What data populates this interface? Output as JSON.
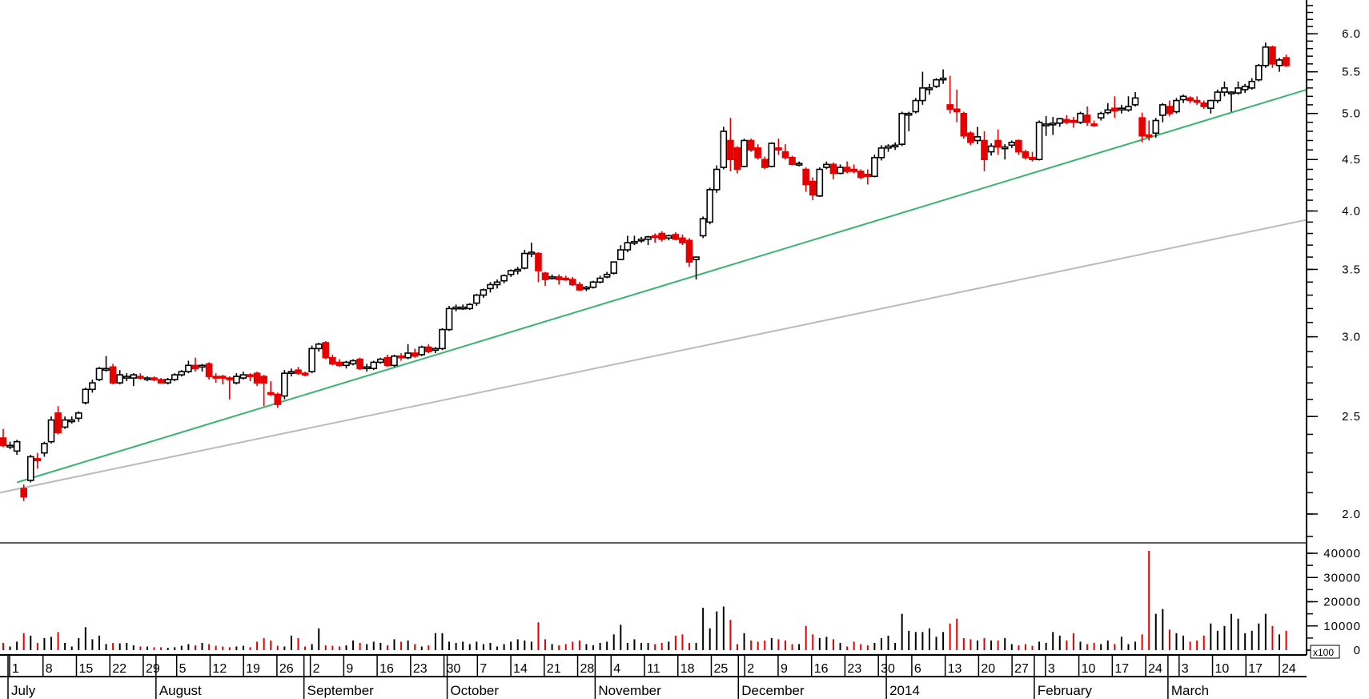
{
  "chart_data": {
    "type": "candlestick",
    "title": "",
    "price_axis": {
      "scale": "log",
      "range": [
        1.88,
        6.45
      ],
      "labels": [
        "2.0",
        "2.5",
        "3.0",
        "3.5",
        "4.0",
        "4.5",
        "5.0",
        "5.5",
        "6.0"
      ],
      "major_values": [
        2.0,
        2.5,
        3.0,
        3.5,
        4.0,
        4.5,
        5.0,
        5.5,
        6.0
      ],
      "minor_step": 0.1
    },
    "volume_axis": {
      "range": [
        0,
        44000
      ],
      "labels": [
        "0",
        "10000",
        "20000",
        "30000",
        "40000"
      ],
      "major_values": [
        0,
        10000,
        20000,
        30000,
        40000
      ],
      "minor_step": 5000,
      "multiplier_label": "x100"
    },
    "colors": {
      "up": "#000000",
      "down": "#e60000",
      "trendline_support": "#3cb371",
      "trendline_long": "#bbbbbb"
    },
    "trendlines": [
      {
        "name": "support",
        "from": [
          2,
          2.15
        ],
        "to": [
          190,
          5.28
        ]
      },
      {
        "name": "long-term",
        "from": [
          -0.5,
          2.1
        ],
        "to": [
          190,
          3.92
        ]
      }
    ],
    "months": [
      {
        "name": "July",
        "weeks": [
          "1",
          "8",
          "15",
          "22",
          "29"
        ]
      },
      {
        "name": "August",
        "weeks": [
          "5",
          "12",
          "19",
          "26"
        ]
      },
      {
        "name": "September",
        "weeks": [
          "2",
          "9",
          "16",
          "23",
          "30"
        ]
      },
      {
        "name": "October",
        "weeks": [
          "7",
          "14",
          "21",
          "28"
        ]
      },
      {
        "name": "November",
        "weeks": [
          "4",
          "11",
          "18",
          "25"
        ]
      },
      {
        "name": "December",
        "weeks": [
          "2",
          "9",
          "16",
          "23",
          "30"
        ]
      },
      {
        "name": "2014",
        "weeks": [
          "6",
          "13",
          "20",
          "27"
        ]
      },
      {
        "name": "February",
        "weeks": [
          "3",
          "10",
          "17",
          "24"
        ]
      },
      {
        "name": "March",
        "weeks": [
          "3",
          "10",
          "17",
          "24"
        ]
      }
    ],
    "candle_fields": [
      "open",
      "high",
      "low",
      "close",
      "volume"
    ],
    "candles": [
      [
        2.38,
        2.43,
        2.33,
        2.34,
        3000
      ],
      [
        2.34,
        2.36,
        2.32,
        2.34,
        1500
      ],
      [
        2.31,
        2.37,
        2.29,
        2.36,
        3500
      ],
      [
        2.12,
        2.14,
        2.06,
        2.08,
        7000
      ],
      [
        2.16,
        2.29,
        2.15,
        2.28,
        6000
      ],
      [
        2.27,
        2.3,
        2.22,
        2.26,
        3000
      ],
      [
        2.3,
        2.36,
        2.28,
        2.35,
        5000
      ],
      [
        2.36,
        2.5,
        2.35,
        2.48,
        5500
      ],
      [
        2.52,
        2.56,
        2.4,
        2.41,
        7500
      ],
      [
        2.44,
        2.5,
        2.43,
        2.48,
        3000
      ],
      [
        2.48,
        2.5,
        2.46,
        2.48,
        1500
      ],
      [
        2.49,
        2.53,
        2.47,
        2.52,
        5000
      ],
      [
        2.58,
        2.67,
        2.57,
        2.66,
        9500
      ],
      [
        2.66,
        2.72,
        2.64,
        2.7,
        4500
      ],
      [
        2.72,
        2.8,
        2.71,
        2.79,
        6000
      ],
      [
        2.78,
        2.87,
        2.77,
        2.79,
        2500
      ],
      [
        2.8,
        2.82,
        2.69,
        2.7,
        3000
      ],
      [
        2.7,
        2.78,
        2.69,
        2.75,
        2800
      ],
      [
        2.74,
        2.76,
        2.71,
        2.74,
        3000
      ],
      [
        2.73,
        2.76,
        2.68,
        2.75,
        2000
      ],
      [
        2.74,
        2.76,
        2.72,
        2.73,
        1500
      ],
      [
        2.73,
        2.74,
        2.71,
        2.73,
        1500
      ],
      [
        2.73,
        2.74,
        2.71,
        2.72,
        1200
      ],
      [
        2.72,
        2.73,
        2.7,
        2.7,
        1200
      ],
      [
        2.7,
        2.73,
        2.69,
        2.72,
        1000
      ],
      [
        2.72,
        2.76,
        2.71,
        2.75,
        1200
      ],
      [
        2.75,
        2.78,
        2.74,
        2.77,
        1800
      ],
      [
        2.77,
        2.84,
        2.76,
        2.81,
        2500
      ],
      [
        2.81,
        2.86,
        2.77,
        2.79,
        2000
      ],
      [
        2.8,
        2.82,
        2.77,
        2.81,
        3000
      ],
      [
        2.82,
        2.83,
        2.72,
        2.74,
        2500
      ],
      [
        2.74,
        2.76,
        2.7,
        2.73,
        1800
      ],
      [
        2.74,
        2.75,
        2.69,
        2.73,
        1500
      ],
      [
        2.73,
        2.74,
        2.6,
        2.72,
        1200
      ],
      [
        2.7,
        2.76,
        2.69,
        2.74,
        1500
      ],
      [
        2.73,
        2.77,
        2.72,
        2.75,
        1800
      ],
      [
        2.75,
        2.76,
        2.71,
        2.74,
        1200
      ],
      [
        2.76,
        2.77,
        2.68,
        2.7,
        3500
      ],
      [
        2.74,
        2.75,
        2.56,
        2.7,
        5000
      ],
      [
        2.64,
        2.71,
        2.62,
        2.63,
        4000
      ],
      [
        2.63,
        2.64,
        2.55,
        2.57,
        1800
      ],
      [
        2.62,
        2.78,
        2.6,
        2.76,
        1500
      ],
      [
        2.76,
        2.79,
        2.74,
        2.77,
        6000
      ],
      [
        2.78,
        2.8,
        2.75,
        2.76,
        5000
      ],
      [
        2.76,
        2.77,
        2.74,
        2.75,
        1500
      ],
      [
        2.77,
        2.94,
        2.76,
        2.92,
        2500
      ],
      [
        2.92,
        2.96,
        2.9,
        2.95,
        9000
      ],
      [
        2.96,
        2.97,
        2.85,
        2.86,
        2000
      ],
      [
        2.86,
        2.88,
        2.81,
        2.82,
        1800
      ],
      [
        2.83,
        2.85,
        2.8,
        2.81,
        1500
      ],
      [
        2.81,
        2.84,
        2.79,
        2.83,
        2000
      ],
      [
        2.82,
        2.85,
        2.81,
        2.84,
        4000
      ],
      [
        2.85,
        2.86,
        2.78,
        2.79,
        3000
      ],
      [
        2.79,
        2.82,
        2.77,
        2.8,
        2500
      ],
      [
        2.79,
        2.84,
        2.78,
        2.83,
        3500
      ],
      [
        2.83,
        2.86,
        2.82,
        2.85,
        3000
      ],
      [
        2.86,
        2.88,
        2.8,
        2.81,
        2000
      ],
      [
        2.81,
        2.88,
        2.8,
        2.87,
        4500
      ],
      [
        2.87,
        2.89,
        2.84,
        2.86,
        3500
      ],
      [
        2.86,
        2.95,
        2.85,
        2.89,
        4000
      ],
      [
        2.89,
        2.92,
        2.86,
        2.87,
        2500
      ],
      [
        2.88,
        2.94,
        2.87,
        2.93,
        1500
      ],
      [
        2.93,
        2.95,
        2.89,
        2.9,
        2000
      ],
      [
        2.91,
        2.93,
        2.89,
        2.92,
        7000
      ],
      [
        2.92,
        3.06,
        2.91,
        3.05,
        7000
      ],
      [
        3.05,
        3.22,
        3.04,
        3.2,
        3500
      ],
      [
        3.2,
        3.23,
        3.18,
        3.21,
        3000
      ],
      [
        3.21,
        3.23,
        3.19,
        3.21,
        3500
      ],
      [
        3.2,
        3.24,
        3.19,
        3.23,
        2500
      ],
      [
        3.24,
        3.31,
        3.22,
        3.3,
        3500
      ],
      [
        3.3,
        3.35,
        3.28,
        3.34,
        2500
      ],
      [
        3.35,
        3.4,
        3.32,
        3.38,
        3000
      ],
      [
        3.38,
        3.42,
        3.35,
        3.4,
        1500
      ],
      [
        3.41,
        3.46,
        3.39,
        3.45,
        2500
      ],
      [
        3.46,
        3.5,
        3.44,
        3.49,
        3500
      ],
      [
        3.49,
        3.52,
        3.46,
        3.5,
        4500
      ],
      [
        3.51,
        3.66,
        3.5,
        3.63,
        4000
      ],
      [
        3.63,
        3.72,
        3.6,
        3.64,
        3500
      ],
      [
        3.63,
        3.64,
        3.4,
        3.49,
        11500
      ],
      [
        3.47,
        3.48,
        3.37,
        3.42,
        4500
      ],
      [
        3.44,
        3.46,
        3.42,
        3.44,
        2500
      ],
      [
        3.44,
        3.46,
        3.38,
        3.42,
        2000
      ],
      [
        3.43,
        3.45,
        3.41,
        3.42,
        2500
      ],
      [
        3.42,
        3.44,
        3.37,
        3.38,
        3500
      ],
      [
        3.38,
        3.4,
        3.33,
        3.34,
        4000
      ],
      [
        3.35,
        3.37,
        3.33,
        3.36,
        2500
      ],
      [
        3.36,
        3.41,
        3.35,
        3.4,
        2000
      ],
      [
        3.4,
        3.45,
        3.39,
        3.43,
        3000
      ],
      [
        3.44,
        3.48,
        3.43,
        3.46,
        3500
      ],
      [
        3.47,
        3.56,
        3.46,
        3.56,
        6500
      ],
      [
        3.58,
        3.7,
        3.58,
        3.66,
        10500
      ],
      [
        3.66,
        3.78,
        3.64,
        3.72,
        3000
      ],
      [
        3.72,
        3.78,
        3.7,
        3.73,
        4500
      ],
      [
        3.74,
        3.77,
        3.72,
        3.75,
        3000
      ],
      [
        3.75,
        3.78,
        3.7,
        3.77,
        3000
      ],
      [
        3.78,
        3.8,
        3.72,
        3.77,
        2500
      ],
      [
        3.8,
        3.82,
        3.73,
        3.75,
        3000
      ],
      [
        3.76,
        3.79,
        3.74,
        3.78,
        3500
      ],
      [
        3.79,
        3.81,
        3.74,
        3.75,
        6000
      ],
      [
        3.76,
        3.79,
        3.7,
        3.72,
        6500
      ],
      [
        3.74,
        3.76,
        3.52,
        3.56,
        3000
      ],
      [
        3.58,
        3.6,
        3.42,
        3.6,
        3000
      ],
      [
        3.78,
        3.95,
        3.76,
        3.93,
        17500
      ],
      [
        3.9,
        4.22,
        3.88,
        4.2,
        9000
      ],
      [
        4.2,
        4.44,
        4.17,
        4.4,
        16000
      ],
      [
        4.42,
        4.85,
        4.4,
        4.8,
        18000
      ],
      [
        4.7,
        4.95,
        4.38,
        4.5,
        12500
      ],
      [
        4.62,
        4.64,
        4.36,
        4.4,
        2500
      ],
      [
        4.43,
        4.72,
        4.42,
        4.7,
        7000
      ],
      [
        4.7,
        4.72,
        4.58,
        4.6,
        4000
      ],
      [
        4.62,
        4.66,
        4.5,
        4.52,
        3500
      ],
      [
        4.5,
        4.53,
        4.4,
        4.42,
        4000
      ],
      [
        4.43,
        4.68,
        4.42,
        4.67,
        5000
      ],
      [
        4.62,
        4.72,
        4.55,
        4.6,
        4500
      ],
      [
        4.58,
        4.66,
        4.5,
        4.52,
        4000
      ],
      [
        4.52,
        4.54,
        4.44,
        4.45,
        2500
      ],
      [
        4.45,
        4.48,
        4.43,
        4.46,
        2500
      ],
      [
        4.4,
        4.42,
        4.18,
        4.25,
        10000
      ],
      [
        4.28,
        4.32,
        4.1,
        4.15,
        6500
      ],
      [
        4.14,
        4.42,
        4.13,
        4.4,
        5000
      ],
      [
        4.42,
        4.48,
        4.4,
        4.45,
        5500
      ],
      [
        4.45,
        4.47,
        4.3,
        4.36,
        4500
      ],
      [
        4.36,
        4.45,
        4.35,
        4.42,
        3000
      ],
      [
        4.42,
        4.48,
        4.36,
        4.38,
        1500
      ],
      [
        4.4,
        4.45,
        4.36,
        4.38,
        3500
      ],
      [
        4.38,
        4.4,
        4.3,
        4.32,
        2500
      ],
      [
        4.35,
        4.4,
        4.25,
        4.33,
        2000
      ],
      [
        4.33,
        4.55,
        4.32,
        4.52,
        3000
      ],
      [
        4.52,
        4.65,
        4.49,
        4.62,
        5000
      ],
      [
        4.62,
        4.66,
        4.58,
        4.64,
        6000
      ],
      [
        4.64,
        4.68,
        4.6,
        4.65,
        3000
      ],
      [
        4.66,
        5.02,
        4.64,
        5.0,
        15000
      ],
      [
        5.0,
        5.02,
        4.8,
        5.0,
        8000
      ],
      [
        5.02,
        5.18,
        5.0,
        5.15,
        7500
      ],
      [
        5.15,
        5.5,
        5.1,
        5.3,
        7500
      ],
      [
        5.3,
        5.35,
        5.22,
        5.3,
        9000
      ],
      [
        5.32,
        5.42,
        5.3,
        5.4,
        5500
      ],
      [
        5.4,
        5.53,
        5.35,
        5.42,
        7500
      ],
      [
        5.1,
        5.45,
        5.0,
        5.05,
        11000
      ],
      [
        5.05,
        5.28,
        4.9,
        5.02,
        13000
      ],
      [
        5.0,
        5.02,
        4.72,
        4.75,
        5000
      ],
      [
        4.78,
        4.8,
        4.65,
        4.68,
        4500
      ],
      [
        4.7,
        4.85,
        4.66,
        4.74,
        4000
      ],
      [
        4.7,
        4.8,
        4.38,
        4.5,
        5000
      ],
      [
        4.58,
        4.67,
        4.54,
        4.64,
        4000
      ],
      [
        4.7,
        4.82,
        4.55,
        4.63,
        4000
      ],
      [
        4.62,
        4.66,
        4.5,
        4.63,
        5000
      ],
      [
        4.65,
        4.7,
        4.62,
        4.68,
        2500
      ],
      [
        4.7,
        4.71,
        4.55,
        4.58,
        2000
      ],
      [
        4.58,
        4.6,
        4.5,
        4.52,
        2500
      ],
      [
        4.52,
        4.58,
        4.48,
        4.5,
        1800
      ],
      [
        4.5,
        4.92,
        4.49,
        4.9,
        3500
      ],
      [
        4.88,
        4.97,
        4.75,
        4.88,
        3000
      ],
      [
        4.88,
        4.96,
        4.76,
        4.89,
        7500
      ],
      [
        4.89,
        4.95,
        4.85,
        4.94,
        6000
      ],
      [
        4.93,
        4.98,
        4.88,
        4.9,
        4000
      ],
      [
        4.92,
        4.96,
        4.84,
        4.9,
        7000
      ],
      [
        4.9,
        5.02,
        4.88,
        5.0,
        3500
      ],
      [
        4.98,
        5.08,
        4.86,
        4.9,
        2500
      ],
      [
        4.88,
        4.92,
        4.85,
        4.87,
        3000
      ],
      [
        4.95,
        5.02,
        4.92,
        5.0,
        2500
      ],
      [
        5.01,
        5.12,
        4.99,
        5.04,
        4000
      ],
      [
        5.06,
        5.2,
        4.95,
        5.03,
        2500
      ],
      [
        5.05,
        5.1,
        5.0,
        5.06,
        5500
      ],
      [
        5.04,
        5.2,
        5.02,
        5.08,
        2500
      ],
      [
        5.1,
        5.25,
        5.08,
        5.18,
        3500
      ],
      [
        4.95,
        5.01,
        4.68,
        4.75,
        6500
      ],
      [
        4.76,
        4.92,
        4.7,
        4.74,
        41000
      ],
      [
        4.78,
        4.95,
        4.73,
        4.92,
        15000
      ],
      [
        4.98,
        5.12,
        4.9,
        5.1,
        17000
      ],
      [
        5.08,
        5.15,
        4.97,
        5.0,
        8500
      ],
      [
        5.02,
        5.18,
        5.0,
        5.15,
        7000
      ],
      [
        5.16,
        5.22,
        5.12,
        5.2,
        6000
      ],
      [
        5.18,
        5.2,
        5.12,
        5.15,
        3500
      ],
      [
        5.15,
        5.2,
        5.1,
        5.13,
        4000
      ],
      [
        5.12,
        5.15,
        5.05,
        5.08,
        6000
      ],
      [
        5.06,
        5.16,
        5.0,
        5.15,
        11000
      ],
      [
        5.15,
        5.28,
        5.12,
        5.25,
        8000
      ],
      [
        5.25,
        5.38,
        5.2,
        5.3,
        10000
      ],
      [
        5.24,
        5.26,
        5.02,
        5.25,
        15000
      ],
      [
        5.24,
        5.38,
        5.22,
        5.3,
        13000
      ],
      [
        5.28,
        5.35,
        5.24,
        5.32,
        7000
      ],
      [
        5.3,
        5.42,
        5.28,
        5.38,
        8000
      ],
      [
        5.4,
        5.6,
        5.38,
        5.58,
        11000
      ],
      [
        5.58,
        5.88,
        5.55,
        5.82,
        15000
      ],
      [
        5.82,
        5.84,
        5.55,
        5.6,
        10000
      ],
      [
        5.58,
        5.68,
        5.5,
        5.65,
        6500
      ],
      [
        5.68,
        5.72,
        5.56,
        5.58,
        8000
      ]
    ]
  }
}
